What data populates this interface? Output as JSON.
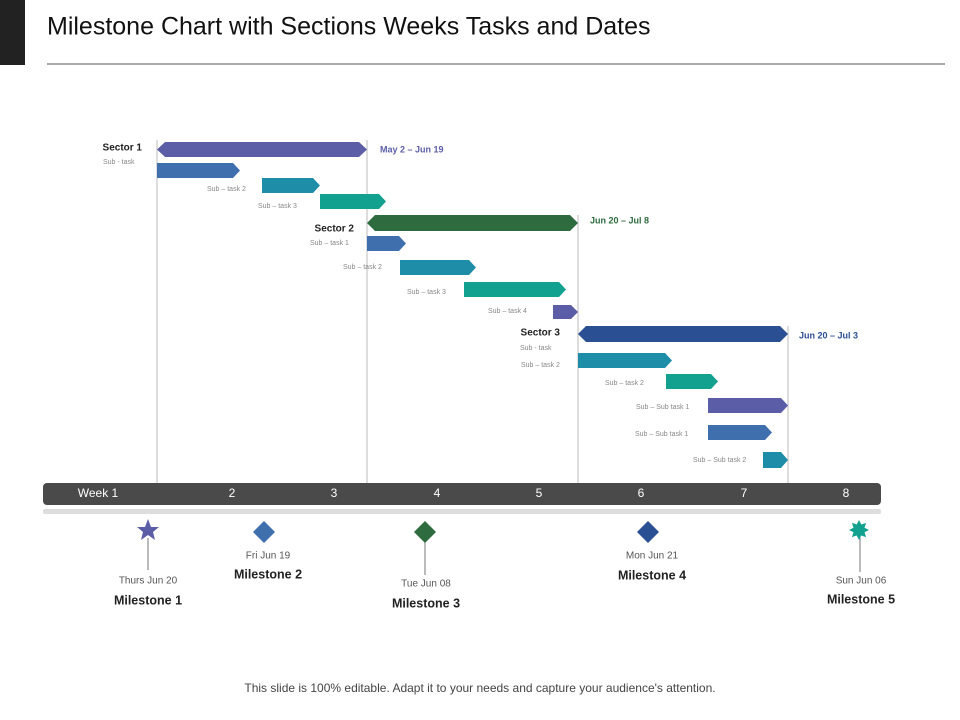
{
  "header": {
    "title": "Milestone Chart with Sections Weeks Tasks and Dates"
  },
  "sectors": [
    {
      "label": "Sector 1",
      "range": "May 2 – Jun 19",
      "tasks": [
        "Sub - task",
        "Sub – task 2",
        "Sub – task 3"
      ]
    },
    {
      "label": "Sector 2",
      "range": "Jun 20 – Jul 8",
      "tasks": [
        "Sub – task 1",
        "Sub – task 2",
        "Sub – task 3",
        "Sub – task 4"
      ]
    },
    {
      "label": "Sector 3",
      "range": "Jun 20 – Jul 3",
      "tasks": [
        "Sub - task",
        "Sub – task 2",
        "Sub – task 2",
        "Sub – Sub task 1",
        "Sub – Sub task 1",
        "Sub – Sub task 2"
      ]
    }
  ],
  "weeks": [
    "Week 1",
    "2",
    "3",
    "4",
    "5",
    "6",
    "7",
    "8"
  ],
  "milestones": [
    {
      "date": "Thurs Jun 20",
      "name": "Milestone 1"
    },
    {
      "date": "Fri Jun 19",
      "name": "Milestone 2"
    },
    {
      "date": "Tue Jun 08",
      "name": "Milestone 3"
    },
    {
      "date": "Mon Jun 21",
      "name": "Milestone 4"
    },
    {
      "date": "Sun Jun 06",
      "name": "Milestone 5"
    }
  ],
  "footer": "This slide is 100% editable. Adapt it to your needs and capture your audience's attention."
}
